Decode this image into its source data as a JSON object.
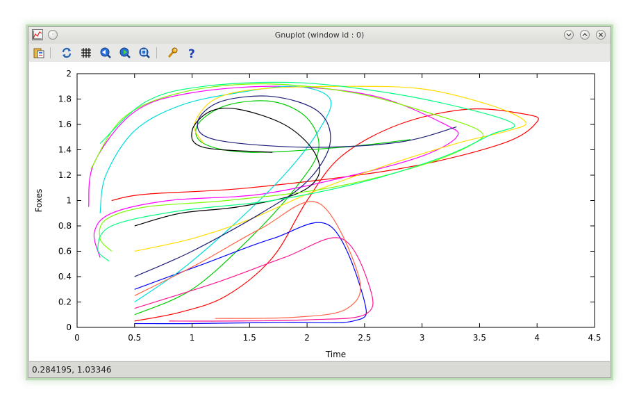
{
  "window": {
    "title": "Gnuplot (window id : 0)"
  },
  "toolbar": {
    "icons": [
      "copy-clipboard-icon",
      "replot-icon",
      "grid-icon",
      "previous-zoom-icon",
      "next-zoom-icon",
      "autoscale-icon",
      "settings-wrench-icon",
      "help-icon"
    ]
  },
  "status": {
    "coords": "0.284195,  1.03346"
  },
  "chart_data": {
    "type": "line",
    "title": "",
    "xlabel": "Time",
    "ylabel": "Foxes",
    "xlim": [
      0,
      4.5
    ],
    "ylim": [
      0,
      2
    ],
    "xticks": [
      "0",
      "0.5",
      "1",
      "1.5",
      "2",
      "2.5",
      "3",
      "3.5",
      "4",
      "4.5"
    ],
    "yticks": [
      "0",
      "0.2",
      "0.4",
      "0.6",
      "0.8",
      "1",
      "1.2",
      "1.4",
      "1.6",
      "1.8",
      "2"
    ],
    "grid": false,
    "legend": "none",
    "colors": [
      "#ff0000",
      "#00cc00",
      "#0000ff",
      "#ff00ff",
      "#00dddd",
      "#ffdd00",
      "#000000",
      "#ff1493",
      "#7cfc00",
      "#1e1e7a",
      "#ff6347",
      "#00ff7f"
    ],
    "series": [
      {
        "points": [
          [
            0.5,
            0.05
          ],
          [
            0.9,
            0.12
          ],
          [
            1.3,
            0.25
          ],
          [
            1.7,
            0.55
          ],
          [
            2.0,
            1.0
          ],
          [
            2.3,
            1.35
          ],
          [
            2.8,
            1.6
          ],
          [
            3.4,
            1.72
          ],
          [
            3.9,
            1.68
          ],
          [
            4.0,
            1.62
          ],
          [
            3.7,
            1.45
          ],
          [
            2.8,
            1.25
          ],
          [
            1.5,
            1.1
          ],
          [
            0.6,
            1.05
          ],
          [
            0.3,
            1.0
          ]
        ]
      },
      {
        "points": [
          [
            0.5,
            0.1
          ],
          [
            1.0,
            0.3
          ],
          [
            1.5,
            0.7
          ],
          [
            1.9,
            1.1
          ],
          [
            2.1,
            1.4
          ],
          [
            2.0,
            1.65
          ],
          [
            1.7,
            1.78
          ],
          [
            1.3,
            1.75
          ],
          [
            1.05,
            1.6
          ],
          [
            1.1,
            1.45
          ],
          [
            1.5,
            1.38
          ],
          [
            2.3,
            1.42
          ],
          [
            2.9,
            1.48
          ]
        ]
      },
      {
        "points": [
          [
            0.5,
            0.3
          ],
          [
            1.1,
            0.5
          ],
          [
            1.7,
            0.7
          ],
          [
            2.2,
            0.8
          ],
          [
            2.5,
            0.2
          ],
          [
            2.4,
            0.05
          ],
          [
            1.8,
            0.04
          ],
          [
            1.0,
            0.03
          ],
          [
            0.5,
            0.03
          ]
        ]
      },
      {
        "points": [
          [
            0.2,
            0.55
          ],
          [
            0.15,
            0.75
          ],
          [
            0.3,
            0.9
          ],
          [
            0.8,
            1.0
          ],
          [
            1.6,
            1.05
          ],
          [
            2.4,
            1.2
          ],
          [
            3.0,
            1.35
          ],
          [
            3.3,
            1.5
          ],
          [
            3.2,
            1.6
          ],
          [
            2.6,
            1.82
          ],
          [
            1.8,
            1.9
          ],
          [
            1.0,
            1.85
          ],
          [
            0.5,
            1.7
          ],
          [
            0.15,
            1.3
          ],
          [
            0.1,
            0.95
          ]
        ]
      },
      {
        "points": [
          [
            0.5,
            0.2
          ],
          [
            0.9,
            0.45
          ],
          [
            1.35,
            0.8
          ],
          [
            1.8,
            1.2
          ],
          [
            2.1,
            1.55
          ],
          [
            2.2,
            1.8
          ],
          [
            1.9,
            1.9
          ],
          [
            1.4,
            1.85
          ],
          [
            0.9,
            1.75
          ],
          [
            0.5,
            1.55
          ],
          [
            0.25,
            1.2
          ],
          [
            0.2,
            0.9
          ]
        ]
      },
      {
        "points": [
          [
            0.5,
            0.6
          ],
          [
            1.0,
            0.7
          ],
          [
            1.5,
            0.85
          ],
          [
            2.0,
            1.05
          ],
          [
            2.6,
            1.25
          ],
          [
            3.3,
            1.45
          ],
          [
            3.75,
            1.55
          ],
          [
            3.9,
            1.62
          ],
          [
            3.6,
            1.75
          ],
          [
            3.0,
            1.88
          ],
          [
            2.3,
            1.9
          ],
          [
            1.6,
            1.88
          ],
          [
            1.2,
            1.8
          ],
          [
            1.02,
            1.6
          ],
          [
            1.1,
            1.45
          ]
        ]
      },
      {
        "points": [
          [
            0.5,
            0.8
          ],
          [
            0.9,
            0.9
          ],
          [
            1.4,
            0.95
          ],
          [
            1.9,
            1.05
          ],
          [
            2.1,
            1.2
          ],
          [
            2.05,
            1.4
          ],
          [
            1.8,
            1.6
          ],
          [
            1.4,
            1.72
          ],
          [
            1.15,
            1.7
          ],
          [
            1.0,
            1.55
          ],
          [
            1.1,
            1.42
          ],
          [
            1.7,
            1.38
          ]
        ]
      },
      {
        "points": [
          [
            0.5,
            0.15
          ],
          [
            1.2,
            0.35
          ],
          [
            1.8,
            0.55
          ],
          [
            2.3,
            0.7
          ],
          [
            2.55,
            0.3
          ],
          [
            2.5,
            0.1
          ],
          [
            2.0,
            0.06
          ],
          [
            1.3,
            0.05
          ],
          [
            0.8,
            0.05
          ]
        ]
      },
      {
        "points": [
          [
            0.3,
            0.6
          ],
          [
            0.2,
            0.7
          ],
          [
            0.25,
            0.85
          ],
          [
            0.6,
            0.95
          ],
          [
            1.3,
            1.0
          ],
          [
            2.2,
            1.1
          ],
          [
            3.0,
            1.28
          ],
          [
            3.45,
            1.45
          ],
          [
            3.5,
            1.55
          ],
          [
            3.1,
            1.68
          ],
          [
            2.4,
            1.85
          ],
          [
            1.6,
            1.92
          ],
          [
            0.9,
            1.85
          ],
          [
            0.4,
            1.65
          ],
          [
            0.12,
            1.25
          ]
        ]
      },
      {
        "points": [
          [
            0.5,
            0.4
          ],
          [
            1.0,
            0.6
          ],
          [
            1.6,
            0.9
          ],
          [
            2.0,
            1.15
          ],
          [
            2.2,
            1.45
          ],
          [
            2.1,
            1.7
          ],
          [
            1.7,
            1.82
          ],
          [
            1.25,
            1.78
          ],
          [
            1.05,
            1.62
          ],
          [
            1.2,
            1.48
          ],
          [
            2.0,
            1.42
          ],
          [
            2.8,
            1.46
          ],
          [
            3.3,
            1.58
          ]
        ]
      },
      {
        "points": [
          [
            0.5,
            0.25
          ],
          [
            1.05,
            0.5
          ],
          [
            1.6,
            0.78
          ],
          [
            2.1,
            0.98
          ],
          [
            2.45,
            0.4
          ],
          [
            2.35,
            0.15
          ],
          [
            1.9,
            0.08
          ],
          [
            1.2,
            0.07
          ]
        ]
      },
      {
        "points": [
          [
            0.28,
            0.52
          ],
          [
            0.18,
            0.62
          ],
          [
            0.3,
            0.8
          ],
          [
            0.9,
            0.92
          ],
          [
            1.7,
            1.0
          ],
          [
            2.5,
            1.15
          ],
          [
            3.2,
            1.35
          ],
          [
            3.6,
            1.52
          ],
          [
            3.8,
            1.6
          ],
          [
            3.4,
            1.72
          ],
          [
            2.7,
            1.85
          ],
          [
            1.9,
            1.93
          ],
          [
            1.1,
            1.9
          ],
          [
            0.6,
            1.78
          ],
          [
            0.2,
            1.45
          ]
        ]
      }
    ]
  }
}
